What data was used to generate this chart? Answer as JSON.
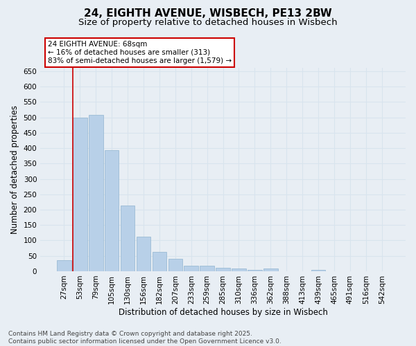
{
  "title_line1": "24, EIGHTH AVENUE, WISBECH, PE13 2BW",
  "title_line2": "Size of property relative to detached houses in Wisbech",
  "xlabel": "Distribution of detached houses by size in Wisbech",
  "ylabel": "Number of detached properties",
  "footer_line1": "Contains HM Land Registry data © Crown copyright and database right 2025.",
  "footer_line2": "Contains public sector information licensed under the Open Government Licence v3.0.",
  "bar_labels": [
    "27sqm",
    "53sqm",
    "79sqm",
    "105sqm",
    "130sqm",
    "156sqm",
    "182sqm",
    "207sqm",
    "233sqm",
    "259sqm",
    "285sqm",
    "310sqm",
    "336sqm",
    "362sqm",
    "388sqm",
    "413sqm",
    "439sqm",
    "465sqm",
    "491sqm",
    "516sqm",
    "542sqm"
  ],
  "bar_values": [
    35,
    498,
    508,
    393,
    213,
    112,
    62,
    40,
    18,
    18,
    11,
    8,
    5,
    8,
    1,
    0,
    4,
    0,
    1,
    0,
    1
  ],
  "bar_color": "#b8d0e8",
  "bar_edge_color": "#90b4d0",
  "background_color": "#e8eef4",
  "grid_color": "#d8e4ee",
  "ylim_max": 660,
  "ytick_step": 50,
  "annotation_text": "24 EIGHTH AVENUE: 68sqm\n← 16% of detached houses are smaller (313)\n83% of semi-detached houses are larger (1,579) →",
  "annotation_box_facecolor": "#ffffff",
  "annotation_box_edgecolor": "#cc0000",
  "red_line_color": "#cc0000",
  "red_line_x": 1,
  "title_fontsize": 11,
  "subtitle_fontsize": 9.5,
  "axis_label_fontsize": 8.5,
  "tick_fontsize": 7.5,
  "annotation_fontsize": 7.5,
  "footer_fontsize": 6.5
}
